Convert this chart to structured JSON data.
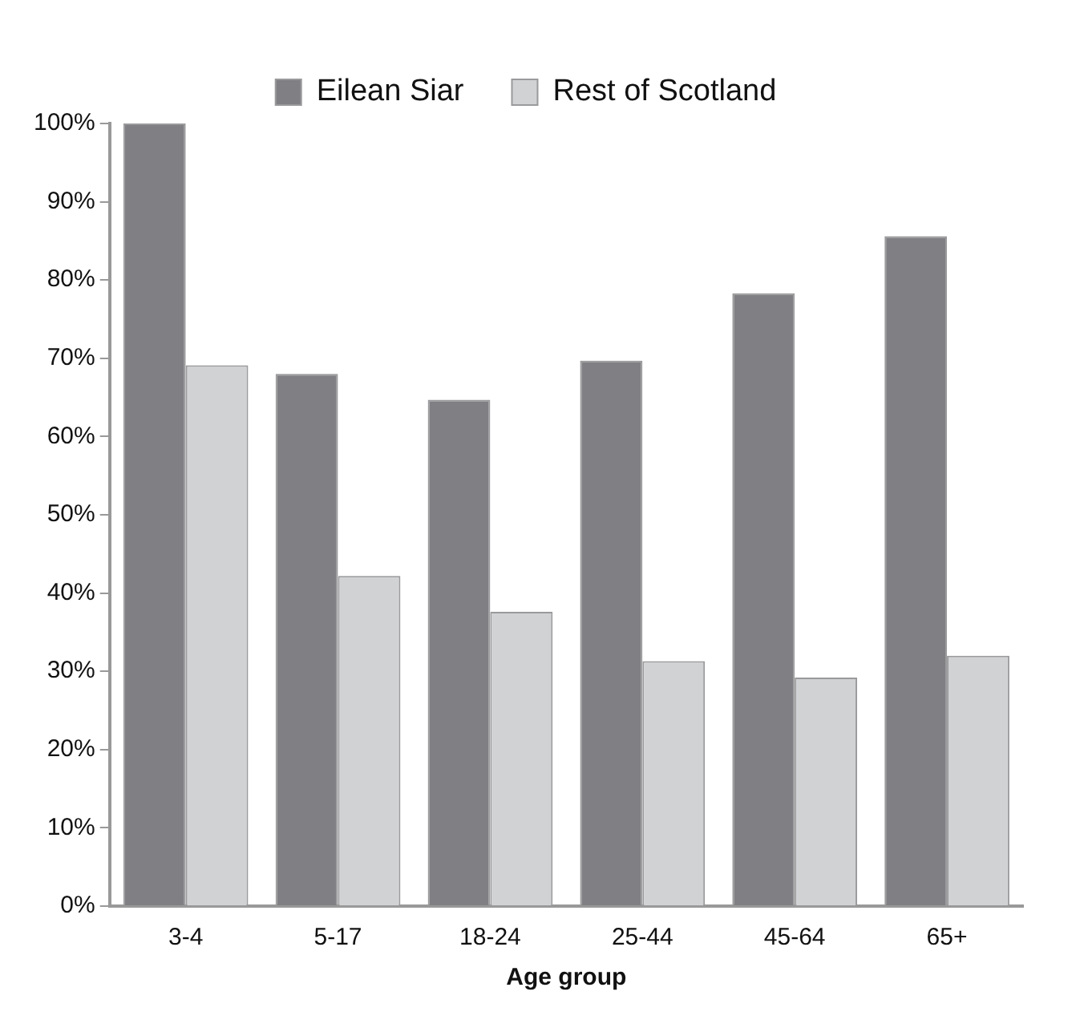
{
  "chart_data": {
    "type": "bar",
    "xlabel": "Age group",
    "categories": [
      "3-4",
      "5-17",
      "18-24",
      "25-44",
      "45-64",
      "65+"
    ],
    "series": [
      {
        "name": "Eilean Siar",
        "color": "#808084",
        "values": [
          100,
          68,
          64.7,
          69.7,
          78.3,
          85.6
        ]
      },
      {
        "name": "Rest of Scotland",
        "color": "#d1d2d4",
        "values": [
          69.1,
          42.2,
          37.6,
          31.3,
          29.2,
          32
        ]
      }
    ],
    "ylim": [
      0,
      100
    ],
    "yticks": [
      {
        "value": 0,
        "label": "0%"
      },
      {
        "value": 10,
        "label": "10%"
      },
      {
        "value": 20,
        "label": "20%"
      },
      {
        "value": 30,
        "label": "30%"
      },
      {
        "value": 40,
        "label": "40%"
      },
      {
        "value": 50,
        "label": "50%"
      },
      {
        "value": 60,
        "label": "60%"
      },
      {
        "value": 70,
        "label": "70%"
      },
      {
        "value": 80,
        "label": "80%"
      },
      {
        "value": 90,
        "label": "90%"
      },
      {
        "value": 100,
        "label": "100%"
      }
    ],
    "grid": false,
    "legend": "top"
  }
}
